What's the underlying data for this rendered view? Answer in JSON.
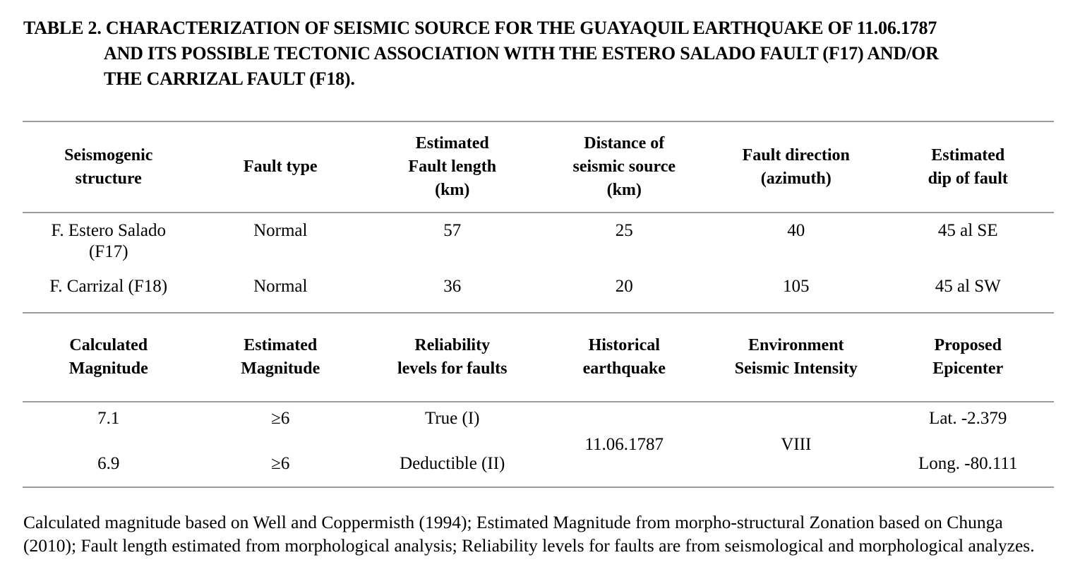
{
  "colors": {
    "text": "#000000",
    "rule": "#9b9b9b",
    "background": "#ffffff"
  },
  "title": {
    "line1": "TABLE 2. CHARACTERIZATION OF SEISMIC SOURCE FOR THE GUAYAQUIL EARTHQUAKE OF 11.06.1787",
    "line2": "AND ITS POSSIBLE TECTONIC ASSOCIATION WITH THE ESTERO SALADO FAULT (F17) AND/OR",
    "line3": "THE CARRIZAL FAULT (F18)."
  },
  "table1": {
    "headers": [
      "Seismogenic\nstructure",
      "Fault type",
      "Estimated\nFault length\n(km)",
      "Distance of\nseismic source\n(km)",
      "Fault direction\n(azimuth)",
      "Estimated\ndip of fault"
    ],
    "rows": [
      [
        "F. Estero Salado\n(F17)",
        "Normal",
        "57",
        "25",
        "40",
        "45 al SE"
      ],
      [
        "F. Carrizal (F18)",
        "Normal",
        "36",
        "20",
        "105",
        "45 al SW"
      ]
    ]
  },
  "table2": {
    "headers": [
      "Calculated\nMagnitude",
      "Estimated\nMagnitude",
      "Reliability\nlevels for faults",
      "Historical\nearthquake",
      "Environment\nSeismic Intensity",
      "Proposed\nEpicenter"
    ],
    "row1": {
      "calculated_magnitude": "7.1",
      "estimated_magnitude": "≥6",
      "reliability": "True (I)",
      "epicenter_lat": "Lat. -2.379"
    },
    "row2": {
      "calculated_magnitude": "6.9",
      "estimated_magnitude": "≥6",
      "reliability": "Deductible (II)",
      "epicenter_long": "Long. -80.111"
    },
    "spanning": {
      "historical_earthquake": "11.06.1787",
      "seismic_intensity": "VIII"
    }
  },
  "footnote": {
    "line1": "Calculated magnitude based on Well and Coppermisth (1994); Estimated Magnitude from morpho-structural Zonation based on Chunga",
    "line2": "(2010); Fault length estimated from morphological analysis; Reliability levels for faults are from seismological and morphological analyzes."
  }
}
